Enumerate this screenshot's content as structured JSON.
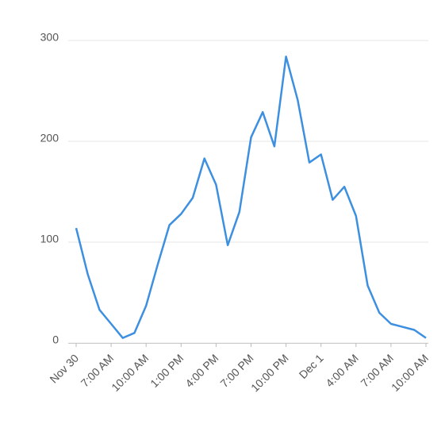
{
  "chart_data": {
    "type": "line",
    "categories": [
      "Nov 30",
      null,
      null,
      "7:00 AM",
      null,
      null,
      "10:00 AM",
      null,
      null,
      "1:00 PM",
      null,
      null,
      "4:00 PM",
      null,
      null,
      "7:00 PM",
      null,
      null,
      "10:00 PM",
      null,
      null,
      "Dec 1",
      null,
      null,
      "4:00 AM",
      null,
      null,
      "7:00 AM",
      null,
      null,
      "10:00 AM"
    ],
    "series": [
      {
        "color": "#3d8fe0",
        "values": [
          114,
          68,
          33,
          19,
          5,
          10,
          37,
          78,
          117,
          128,
          144,
          183,
          157,
          97,
          130,
          204,
          229,
          195,
          284,
          241,
          179,
          187,
          142,
          155,
          126,
          57,
          30,
          19,
          16,
          13,
          5
        ]
      }
    ],
    "ylim": [
      0,
      300
    ],
    "yticks": [
      0,
      100,
      200,
      300
    ],
    "grid": true
  }
}
